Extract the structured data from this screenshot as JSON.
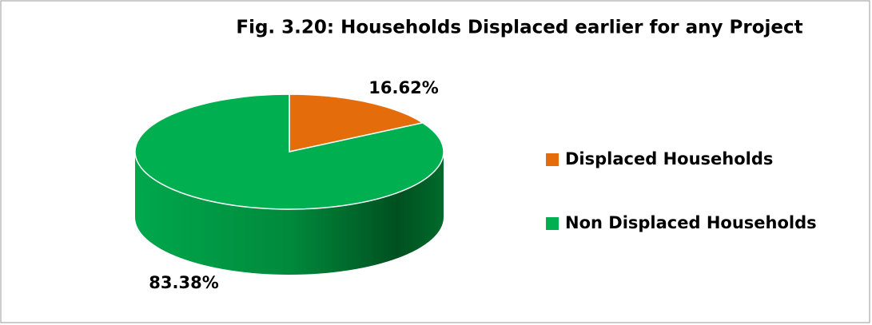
{
  "chart_data": {
    "type": "pie",
    "title": "Fig. 3.20: Households Displaced earlier for any Project",
    "categories": [
      "Displaced Households",
      "Non Displaced Households"
    ],
    "values": [
      16.62,
      83.38
    ],
    "value_labels": [
      "16.62%",
      "83.38%"
    ],
    "colors": [
      "#e46c0a",
      "#00b050"
    ],
    "legend": "right",
    "three_d": true
  }
}
